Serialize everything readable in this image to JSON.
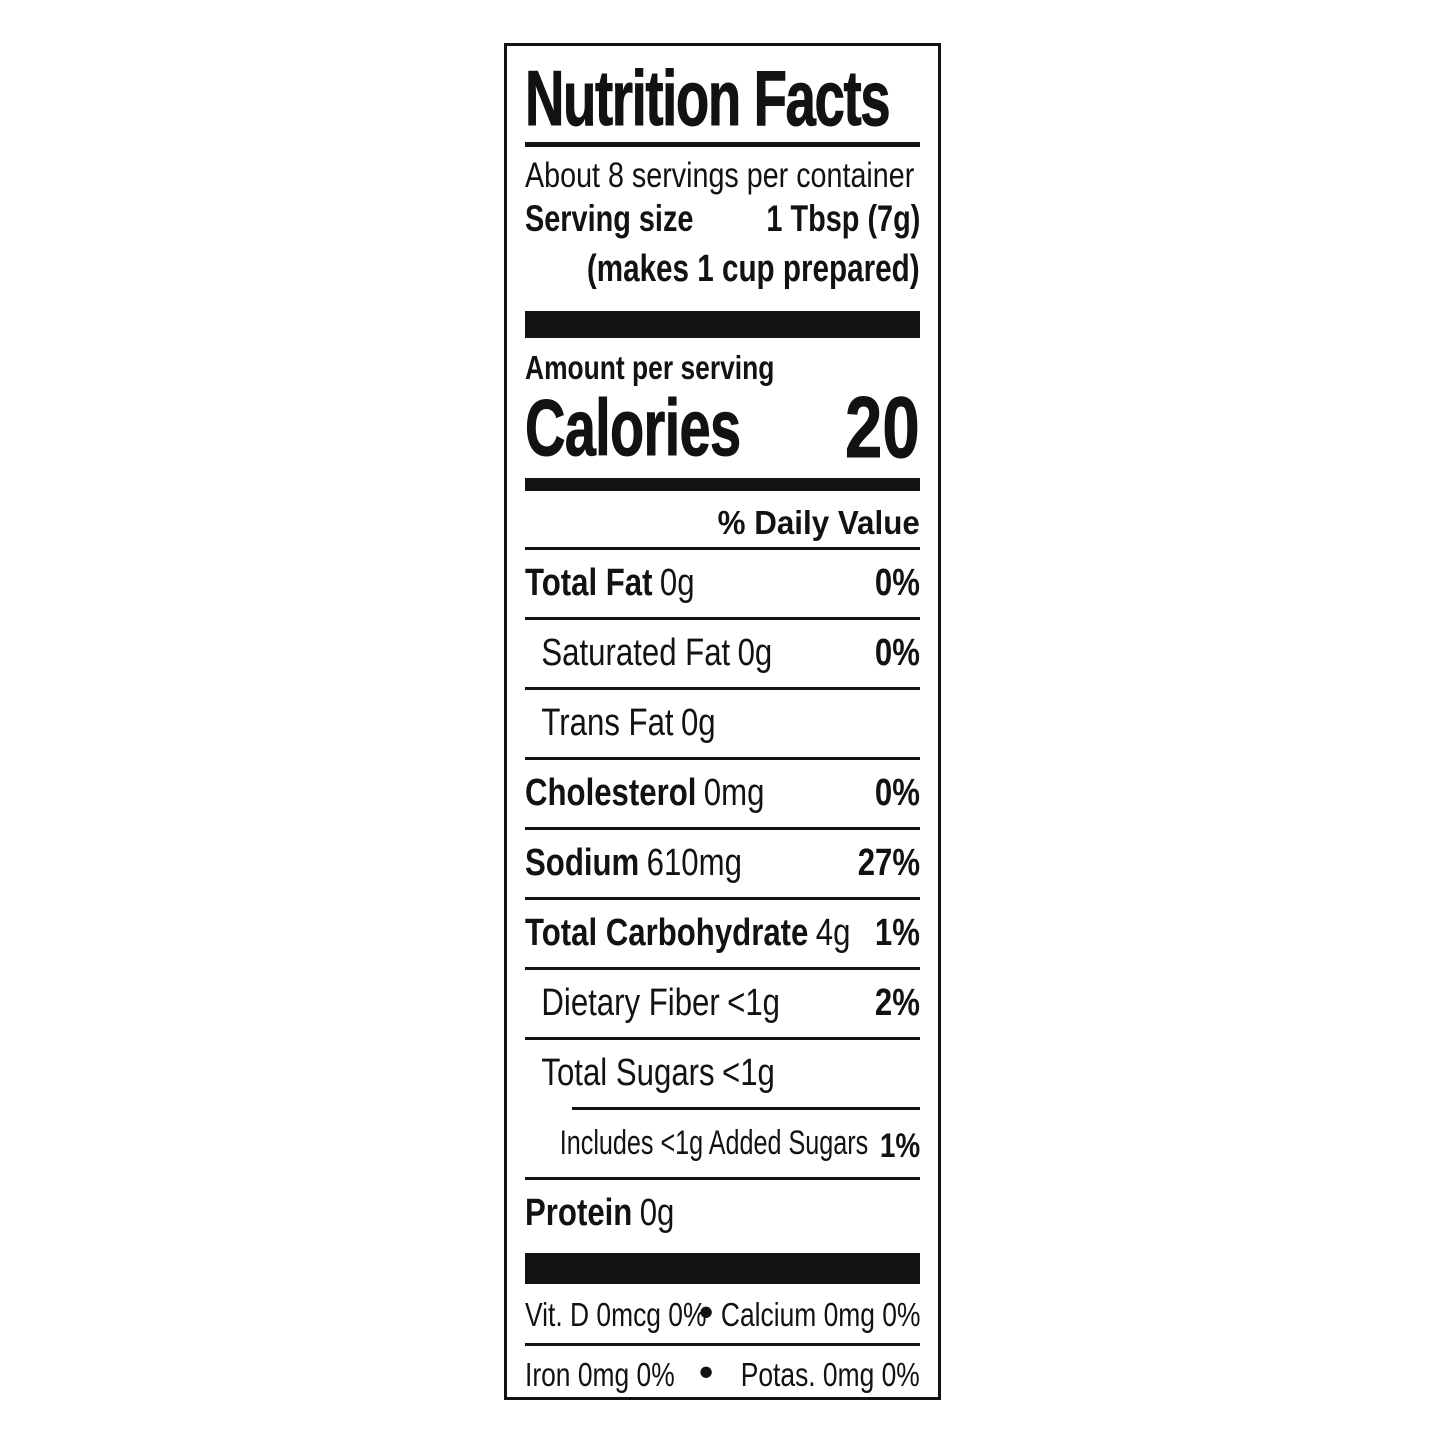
{
  "label": {
    "title": "Nutrition Facts",
    "servings_per_container": "About 8 servings per container",
    "serving_size": {
      "label": "Serving size",
      "value": "1 Tbsp (7g)",
      "note": "(makes 1 cup prepared)"
    },
    "amount_per_serving": "Amount per serving",
    "calories": {
      "label": "Calories",
      "value": "20"
    },
    "daily_value_header": "% Daily Value",
    "rows": [
      {
        "name": "Total Fat",
        "amount": "0g",
        "dv": "0%"
      },
      {
        "name": "Saturated Fat",
        "amount": "0g",
        "dv": "0%"
      },
      {
        "name": "Trans Fat",
        "amount": "0g",
        "dv": ""
      },
      {
        "name": "Cholesterol",
        "amount": "0mg",
        "dv": "0%"
      },
      {
        "name": "Sodium",
        "amount": "610mg",
        "dv": "27%"
      },
      {
        "name": "Total Carbohydrate",
        "amount": "4g",
        "dv": "1%"
      },
      {
        "name": "Dietary Fiber",
        "amount": "<1g",
        "dv": "2%"
      },
      {
        "name": "Total Sugars",
        "amount": "<1g",
        "dv": ""
      },
      {
        "name": "Includes <1g Added Sugars",
        "amount": "",
        "dv": "1%"
      },
      {
        "name": "Protein",
        "amount": "0g",
        "dv": ""
      }
    ],
    "micronutrients": {
      "bullet": "•",
      "row1": {
        "left": "Vit. D 0mcg 0%",
        "right": "Calcium 0mg 0%"
      },
      "row2": {
        "left": "Iron 0mg 0%",
        "right": "Potas. 0mg 0%"
      }
    },
    "colors": {
      "ink": "#121212",
      "background": "#ffffff"
    }
  }
}
